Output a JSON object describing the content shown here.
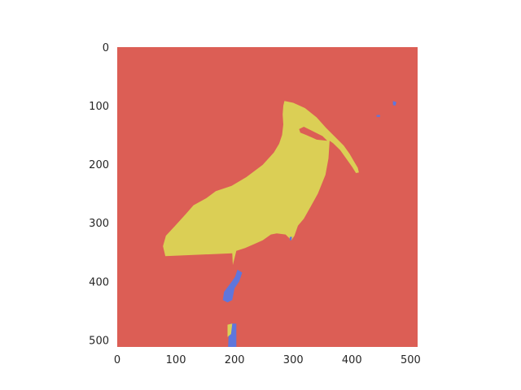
{
  "chart_data": {
    "type": "heatmap",
    "title": "",
    "xlabel": "",
    "ylabel": "",
    "xlim": [
      0,
      512
    ],
    "ylim": [
      512,
      0
    ],
    "grid": false,
    "x_ticks": [
      {
        "value": 0,
        "label": "0"
      },
      {
        "value": 100,
        "label": "100"
      },
      {
        "value": 200,
        "label": "200"
      },
      {
        "value": 300,
        "label": "300"
      },
      {
        "value": 400,
        "label": "400"
      },
      {
        "value": 500,
        "label": "500"
      }
    ],
    "y_ticks": [
      {
        "value": 0,
        "label": "0"
      },
      {
        "value": 100,
        "label": "100"
      },
      {
        "value": 200,
        "label": "200"
      },
      {
        "value": 300,
        "label": "300"
      },
      {
        "value": 400,
        "label": "400"
      },
      {
        "value": 500,
        "label": "500"
      }
    ],
    "colors": {
      "background_class": "#dc5e55",
      "bird_class": "#dbcf55",
      "legs_class": "#5f76dc"
    },
    "regions": [
      {
        "class": "bird_class",
        "polygon": [
          [
            285,
            92
          ],
          [
            300,
            95
          ],
          [
            320,
            104
          ],
          [
            340,
            120
          ],
          [
            356,
            138
          ],
          [
            372,
            154
          ],
          [
            386,
            168
          ],
          [
            396,
            182
          ],
          [
            404,
            196
          ],
          [
            410,
            206
          ],
          [
            412,
            214
          ],
          [
            407,
            215
          ],
          [
            400,
            204
          ],
          [
            390,
            190
          ],
          [
            380,
            176
          ],
          [
            368,
            164
          ],
          [
            362,
            160
          ],
          [
            360,
            190
          ],
          [
            355,
            218
          ],
          [
            342,
            250
          ],
          [
            330,
            272
          ],
          [
            318,
            293
          ],
          [
            308,
            305
          ],
          [
            302,
            322
          ],
          [
            297,
            330
          ],
          [
            287,
            320
          ],
          [
            272,
            318
          ],
          [
            262,
            320
          ],
          [
            248,
            330
          ],
          [
            232,
            337
          ],
          [
            218,
            343
          ],
          [
            203,
            348
          ],
          [
            197,
            372
          ],
          [
            196,
            352
          ],
          [
            82,
            357
          ],
          [
            78,
            340
          ],
          [
            83,
            322
          ],
          [
            98,
            306
          ],
          [
            117,
            285
          ],
          [
            130,
            270
          ],
          [
            152,
            258
          ],
          [
            168,
            246
          ],
          [
            195,
            237
          ],
          [
            220,
            222
          ],
          [
            248,
            201
          ],
          [
            267,
            180
          ],
          [
            276,
            165
          ],
          [
            281,
            150
          ],
          [
            283,
            132
          ],
          [
            282,
            115
          ],
          [
            283,
            100
          ]
        ]
      },
      {
        "class": "background_class",
        "polygon": [
          [
            310,
            140
          ],
          [
            318,
            136
          ],
          [
            330,
            142
          ],
          [
            350,
            152
          ],
          [
            358,
            160
          ],
          [
            340,
            158
          ],
          [
            322,
            150
          ],
          [
            312,
            146
          ]
        ]
      },
      {
        "class": "legs_class",
        "polygon": [
          [
            205,
            380
          ],
          [
            213,
            385
          ],
          [
            208,
            400
          ],
          [
            200,
            412
          ],
          [
            196,
            432
          ],
          [
            188,
            436
          ],
          [
            180,
            432
          ],
          [
            182,
            418
          ],
          [
            194,
            402
          ],
          [
            201,
            392
          ]
        ]
      },
      {
        "class": "legs_class",
        "polygon": [
          [
            193,
            472
          ],
          [
            203,
            472
          ],
          [
            203,
            512
          ],
          [
            189,
            512
          ],
          [
            190,
            490
          ]
        ]
      },
      {
        "class": "bird_class",
        "polygon": [
          [
            188,
            474
          ],
          [
            196,
            472
          ],
          [
            194,
            490
          ],
          [
            188,
            495
          ]
        ]
      },
      {
        "class": "legs_class",
        "polygon": [
          [
            470,
            92
          ],
          [
            476,
            94
          ],
          [
            474,
            100
          ],
          [
            470,
            99
          ]
        ]
      },
      {
        "class": "legs_class",
        "polygon": [
          [
            442,
            116
          ],
          [
            448,
            116
          ],
          [
            448,
            119
          ],
          [
            442,
            119
          ]
        ]
      },
      {
        "class": "legs_class",
        "polygon": [
          [
            294,
            324
          ],
          [
            298,
            324
          ],
          [
            297,
            330
          ],
          [
            294,
            330
          ]
        ]
      }
    ]
  }
}
